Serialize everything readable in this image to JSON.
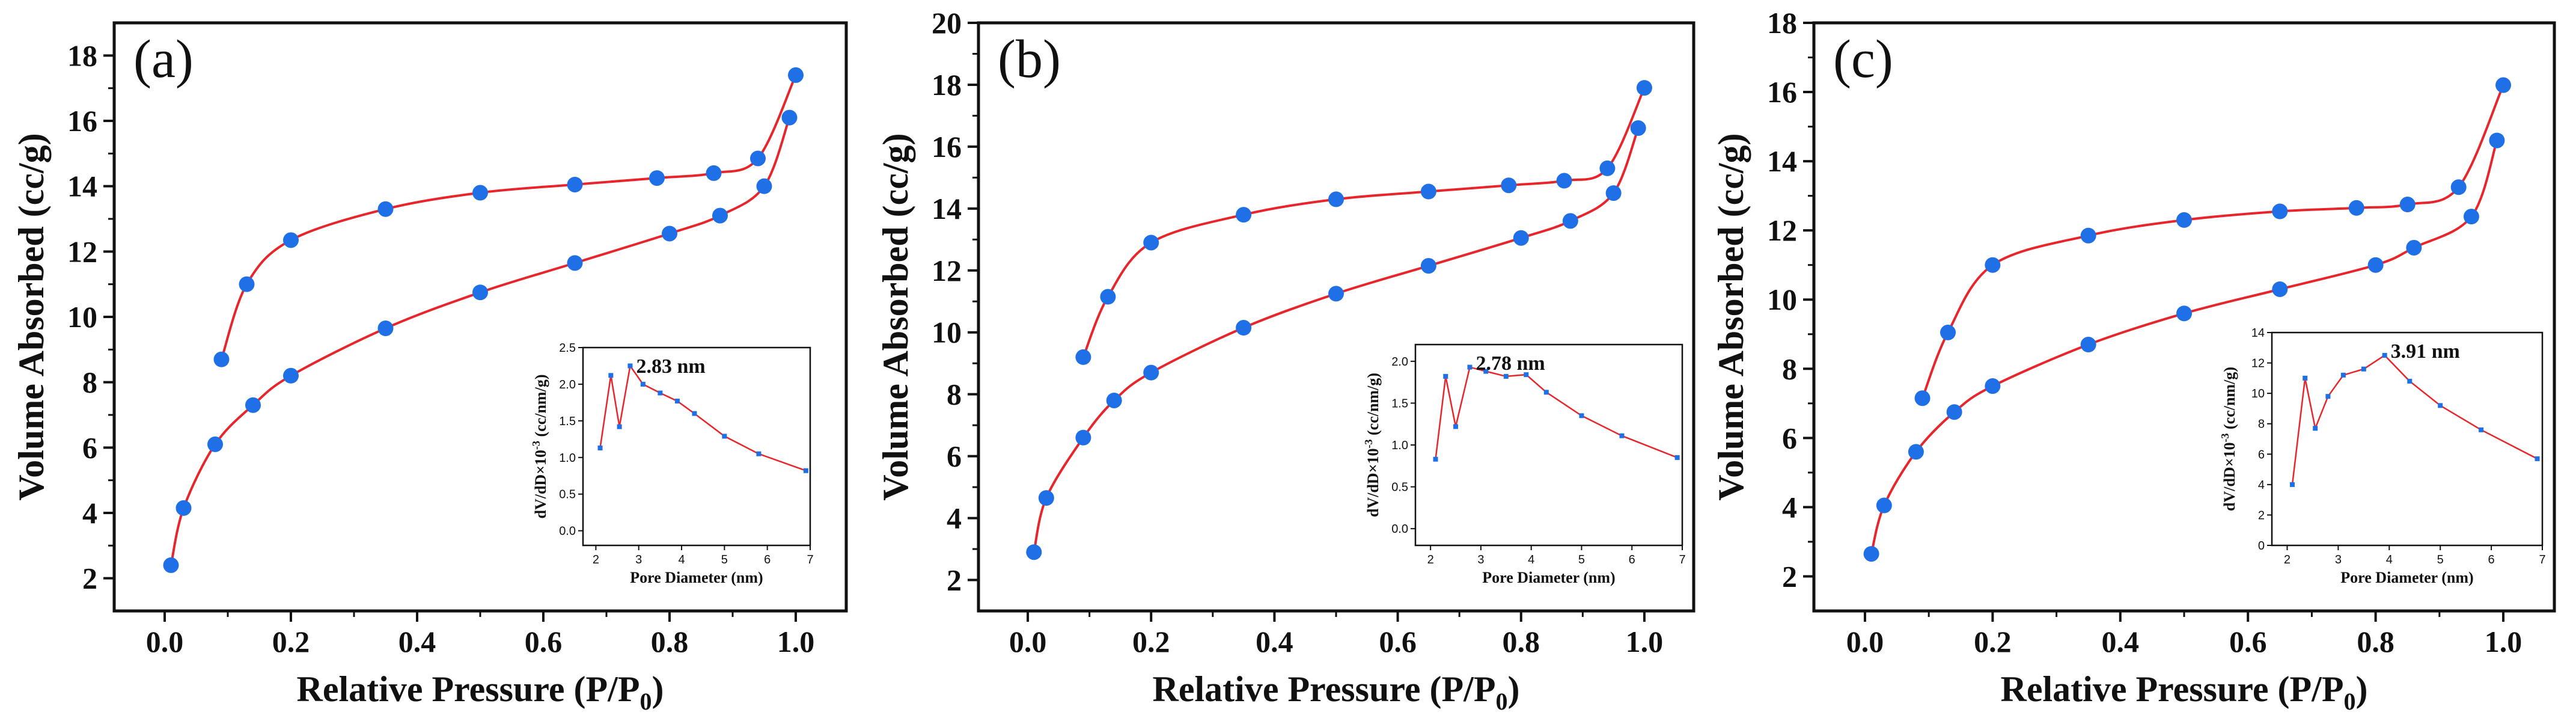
{
  "chart_data": [
    {
      "type": "line",
      "panel_label": "(a)",
      "xlabel": "Relative Pressure (P/P",
      "xlabel_sub": "0",
      "xlabel_end": ")",
      "ylabel": "Volume Absorbed (cc/g)",
      "xlim": [
        -0.08,
        1.08
      ],
      "ylim": [
        1.0,
        19.0
      ],
      "xticks": [
        "0.0",
        "0.2",
        "0.4",
        "0.6",
        "0.8",
        "1.0"
      ],
      "xtick_values": [
        0.0,
        0.2,
        0.4,
        0.6,
        0.8,
        1.0
      ],
      "yticks": [
        "2",
        "4",
        "6",
        "8",
        "10",
        "12",
        "14",
        "16",
        "18"
      ],
      "ytick_values": [
        2,
        4,
        6,
        8,
        10,
        12,
        14,
        16,
        18
      ],
      "line_color": "#e8252b",
      "marker_color": "#1f6fe6",
      "series": [
        {
          "x": [
            0.01,
            0.03,
            0.08,
            0.14,
            0.2,
            0.35,
            0.5,
            0.65,
            0.8,
            0.88,
            0.95,
            0.99
          ],
          "y": [
            2.4,
            4.15,
            6.1,
            7.3,
            8.2,
            9.65,
            10.75,
            11.65,
            12.55,
            13.1,
            14.0,
            16.1
          ]
        },
        {
          "x": [
            0.09,
            0.13,
            0.2,
            0.35,
            0.5,
            0.65,
            0.78,
            0.87,
            0.94,
            1.0
          ],
          "y": [
            8.7,
            11.0,
            12.35,
            13.3,
            13.8,
            14.05,
            14.25,
            14.4,
            14.85,
            17.4
          ]
        }
      ],
      "inset": {
        "peak_label": "2.83 nm",
        "xlabel": "Pore Diameter (nm)",
        "ylabel": "dV/dD×10",
        "ylabel_sup": "-3",
        "ylabel_end": " (cc/nm/g)",
        "xlim": [
          1.7,
          7.0
        ],
        "ylim": [
          -0.2,
          2.5
        ],
        "xticks": [
          "2",
          "3",
          "4",
          "5",
          "6",
          "7"
        ],
        "xtick_values": [
          2,
          3,
          4,
          5,
          6,
          7
        ],
        "yticks": [
          "0.0",
          "0.5",
          "1.0",
          "1.5",
          "2.0",
          "2.5"
        ],
        "ytick_values": [
          0.0,
          0.5,
          1.0,
          1.5,
          2.0,
          2.5
        ],
        "x": [
          2.1,
          2.35,
          2.55,
          2.8,
          3.1,
          3.5,
          3.9,
          4.3,
          5.0,
          5.8,
          6.9
        ],
        "y": [
          1.13,
          2.12,
          1.42,
          2.25,
          2.0,
          1.88,
          1.77,
          1.6,
          1.29,
          1.05,
          0.82
        ]
      }
    },
    {
      "type": "line",
      "panel_label": "(b)",
      "xlabel": "Relative Pressure (P/P",
      "xlabel_sub": "0",
      "xlabel_end": ")",
      "ylabel": "Volume Absorbed (cc/g)",
      "xlim": [
        -0.08,
        1.08
      ],
      "ylim": [
        1.0,
        20.0
      ],
      "xticks": [
        "0.0",
        "0.2",
        "0.4",
        "0.6",
        "0.8",
        "1.0"
      ],
      "xtick_values": [
        0.0,
        0.2,
        0.4,
        0.6,
        0.8,
        1.0
      ],
      "yticks": [
        "2",
        "4",
        "6",
        "8",
        "10",
        "12",
        "14",
        "16",
        "18",
        "20"
      ],
      "ytick_values": [
        2,
        4,
        6,
        8,
        10,
        12,
        14,
        16,
        18,
        20
      ],
      "line_color": "#e8252b",
      "marker_color": "#1f6fe6",
      "series": [
        {
          "x": [
            0.01,
            0.03,
            0.09,
            0.14,
            0.2,
            0.35,
            0.5,
            0.65,
            0.8,
            0.88,
            0.95,
            0.99
          ],
          "y": [
            2.9,
            4.65,
            6.6,
            7.8,
            8.7,
            10.15,
            11.25,
            12.15,
            13.05,
            13.6,
            14.5,
            16.6
          ]
        },
        {
          "x": [
            0.09,
            0.13,
            0.2,
            0.35,
            0.5,
            0.65,
            0.78,
            0.87,
            0.94,
            1.0
          ],
          "y": [
            9.2,
            11.15,
            12.9,
            13.8,
            14.3,
            14.55,
            14.75,
            14.9,
            15.3,
            17.9
          ]
        }
      ],
      "inset": {
        "peak_label": "2.78 nm",
        "xlabel": "Pore Diameter (nm)",
        "ylabel": "dV/dD×10",
        "ylabel_sup": "-3",
        "ylabel_end": " (cc/nm/g)",
        "xlim": [
          1.7,
          7.0
        ],
        "ylim": [
          -0.2,
          2.2
        ],
        "xticks": [
          "2",
          "3",
          "4",
          "5",
          "6",
          "7"
        ],
        "xtick_values": [
          2,
          3,
          4,
          5,
          6,
          7
        ],
        "yticks": [
          "0.0",
          "0.5",
          "1.0",
          "1.5",
          "2.0"
        ],
        "ytick_values": [
          0.0,
          0.5,
          1.0,
          1.5,
          2.0
        ],
        "x": [
          2.1,
          2.3,
          2.5,
          2.78,
          3.1,
          3.5,
          3.9,
          4.3,
          5.0,
          5.8,
          6.9
        ],
        "y": [
          0.83,
          1.82,
          1.22,
          1.93,
          1.88,
          1.82,
          1.84,
          1.63,
          1.35,
          1.11,
          0.85
        ]
      }
    },
    {
      "type": "line",
      "panel_label": "(c)",
      "xlabel": "Relative Pressure (P/P",
      "xlabel_sub": "0",
      "xlabel_end": ")",
      "ylabel": "Volume Absorbed (cc/g)",
      "xlim": [
        -0.08,
        1.08
      ],
      "ylim": [
        1.0,
        18.0
      ],
      "xticks": [
        "0.0",
        "0.2",
        "0.4",
        "0.6",
        "0.8",
        "1.0"
      ],
      "xtick_values": [
        0.0,
        0.2,
        0.4,
        0.6,
        0.8,
        1.0
      ],
      "yticks": [
        "2",
        "4",
        "6",
        "8",
        "10",
        "12",
        "14",
        "16",
        "18"
      ],
      "ytick_values": [
        2,
        4,
        6,
        8,
        10,
        12,
        14,
        16,
        18
      ],
      "line_color": "#e8252b",
      "marker_color": "#1f6fe6",
      "series": [
        {
          "x": [
            0.01,
            0.03,
            0.08,
            0.14,
            0.2,
            0.35,
            0.5,
            0.65,
            0.8,
            0.86,
            0.95,
            0.99
          ],
          "y": [
            2.65,
            4.05,
            5.6,
            6.75,
            7.5,
            8.7,
            9.6,
            10.3,
            11.0,
            11.5,
            12.4,
            14.6
          ]
        },
        {
          "x": [
            0.09,
            0.13,
            0.2,
            0.35,
            0.5,
            0.65,
            0.77,
            0.85,
            0.93,
            1.0
          ],
          "y": [
            7.15,
            9.05,
            11.0,
            11.85,
            12.3,
            12.55,
            12.65,
            12.75,
            13.25,
            16.2
          ]
        }
      ],
      "inset": {
        "peak_label": "3.91 nm",
        "xlabel": "Pore Diameter (nm)",
        "ylabel": "dV/dD×10",
        "ylabel_sup": "-3",
        "ylabel_end": " (cc/nm/g)",
        "xlim": [
          1.7,
          7.0
        ],
        "ylim": [
          0.0,
          14.0
        ],
        "xticks": [
          "2",
          "3",
          "4",
          "5",
          "6",
          "7"
        ],
        "xtick_values": [
          2,
          3,
          4,
          5,
          6,
          7
        ],
        "yticks": [
          "0",
          "2",
          "4",
          "6",
          "8",
          "10",
          "12",
          "14"
        ],
        "ytick_values": [
          0,
          2,
          4,
          6,
          8,
          10,
          12,
          14
        ],
        "x": [
          2.1,
          2.35,
          2.55,
          2.8,
          3.1,
          3.5,
          3.91,
          4.4,
          5.0,
          5.8,
          6.9
        ],
        "y": [
          4.0,
          11.0,
          7.7,
          9.8,
          11.2,
          11.6,
          12.5,
          10.8,
          9.2,
          7.6,
          5.7
        ]
      }
    }
  ]
}
